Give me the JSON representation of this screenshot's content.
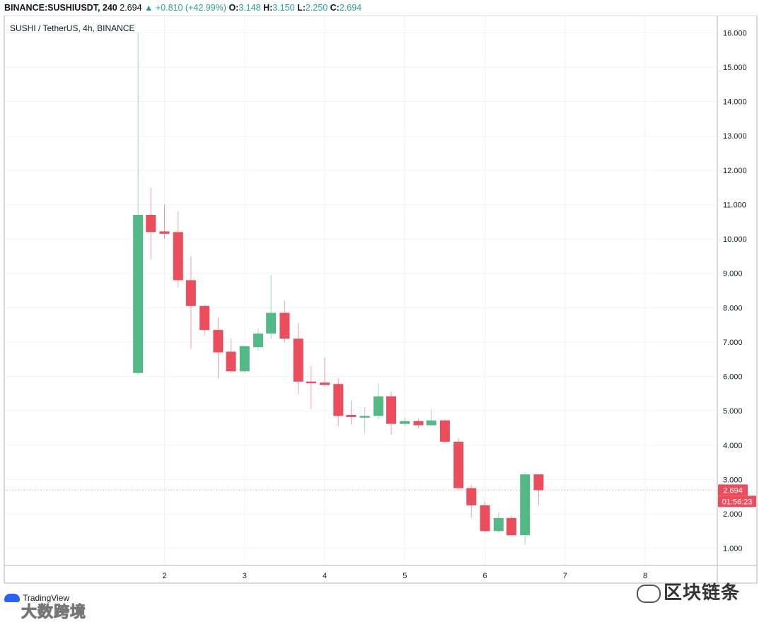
{
  "header": {
    "symbol": "BINANCE:SUSHIUSDT, 240",
    "last": "2.694",
    "change": "+0.810 (+42.99%)",
    "o_label": "O:",
    "o_value": "3.148",
    "h_label": "H:",
    "h_value": "3.150",
    "l_label": "L:",
    "l_value": "2.250",
    "c_label": "C:",
    "c_value": "2.694"
  },
  "chart_data": {
    "type": "candlestick",
    "title": "SUSHI / TetherUS, 4h, BINANCE",
    "ylim": [
      0.5,
      16.5
    ],
    "y_ticks": [
      1,
      2,
      3,
      4,
      5,
      6,
      7,
      8,
      9,
      10,
      11,
      12,
      13,
      14,
      15,
      16
    ],
    "y_tick_labels": [
      "1.000",
      "2.000",
      "3.000",
      "4.000",
      "5.000",
      "6.000",
      "7.000",
      "8.000",
      "9.000",
      "10.000",
      "11.000",
      "12.000",
      "13.000",
      "14.000",
      "15.000",
      "16.000"
    ],
    "x_ticks": [
      2,
      3,
      4,
      5,
      6,
      7,
      8
    ],
    "x_tick_labels": [
      "2",
      "3",
      "4",
      "5",
      "6",
      "7",
      "8"
    ],
    "xlim": [
      0.0,
      8.9
    ],
    "colors": {
      "up": "#53b987",
      "down": "#eb4d5c",
      "grid": "#f0f3fa",
      "axis": "#9598a1"
    },
    "candles": [
      {
        "x": 1.67,
        "o": 6.1,
        "h": 16.0,
        "l": 6.05,
        "c": 10.7
      },
      {
        "x": 1.83,
        "o": 10.7,
        "h": 11.5,
        "l": 9.4,
        "c": 10.2
      },
      {
        "x": 2.0,
        "o": 10.22,
        "h": 11.0,
        "l": 10.0,
        "c": 10.15
      },
      {
        "x": 2.17,
        "o": 10.2,
        "h": 10.8,
        "l": 8.6,
        "c": 8.8
      },
      {
        "x": 2.33,
        "o": 8.8,
        "h": 9.5,
        "l": 6.8,
        "c": 8.05
      },
      {
        "x": 2.5,
        "o": 8.05,
        "h": 8.1,
        "l": 7.2,
        "c": 7.35
      },
      {
        "x": 2.67,
        "o": 7.35,
        "h": 7.7,
        "l": 5.95,
        "c": 6.7
      },
      {
        "x": 2.83,
        "o": 6.72,
        "h": 7.1,
        "l": 6.1,
        "c": 6.15
      },
      {
        "x": 3.0,
        "o": 6.15,
        "h": 6.9,
        "l": 6.1,
        "c": 6.88
      },
      {
        "x": 3.17,
        "o": 6.85,
        "h": 7.4,
        "l": 6.75,
        "c": 7.25
      },
      {
        "x": 3.33,
        "o": 7.25,
        "h": 8.95,
        "l": 7.1,
        "c": 7.85
      },
      {
        "x": 3.5,
        "o": 7.85,
        "h": 8.2,
        "l": 7.0,
        "c": 7.1
      },
      {
        "x": 3.67,
        "o": 7.1,
        "h": 7.55,
        "l": 5.5,
        "c": 5.85
      },
      {
        "x": 3.83,
        "o": 5.85,
        "h": 6.3,
        "l": 5.05,
        "c": 5.8
      },
      {
        "x": 4.0,
        "o": 5.82,
        "h": 6.55,
        "l": 5.7,
        "c": 5.75
      },
      {
        "x": 4.17,
        "o": 5.78,
        "h": 5.95,
        "l": 4.55,
        "c": 4.85
      },
      {
        "x": 4.33,
        "o": 4.88,
        "h": 5.3,
        "l": 4.6,
        "c": 4.82
      },
      {
        "x": 4.5,
        "o": 4.8,
        "h": 5.1,
        "l": 4.35,
        "c": 4.85
      },
      {
        "x": 4.67,
        "o": 4.85,
        "h": 5.8,
        "l": 4.75,
        "c": 5.42
      },
      {
        "x": 4.83,
        "o": 5.42,
        "h": 5.55,
        "l": 4.3,
        "c": 4.62
      },
      {
        "x": 5.0,
        "o": 4.62,
        "h": 4.8,
        "l": 4.55,
        "c": 4.7
      },
      {
        "x": 5.17,
        "o": 4.7,
        "h": 4.78,
        "l": 4.5,
        "c": 4.58
      },
      {
        "x": 5.33,
        "o": 4.58,
        "h": 5.05,
        "l": 4.55,
        "c": 4.72
      },
      {
        "x": 5.5,
        "o": 4.72,
        "h": 4.75,
        "l": 4.05,
        "c": 4.1
      },
      {
        "x": 5.67,
        "o": 4.1,
        "h": 4.2,
        "l": 2.7,
        "c": 2.75
      },
      {
        "x": 5.83,
        "o": 2.75,
        "h": 2.85,
        "l": 1.9,
        "c": 2.25
      },
      {
        "x": 6.0,
        "o": 2.25,
        "h": 2.35,
        "l": 1.45,
        "c": 1.5
      },
      {
        "x": 6.17,
        "o": 1.5,
        "h": 2.05,
        "l": 1.45,
        "c": 1.88
      },
      {
        "x": 6.33,
        "o": 1.88,
        "h": 1.95,
        "l": 1.35,
        "c": 1.38
      },
      {
        "x": 6.5,
        "o": 1.38,
        "h": 3.2,
        "l": 1.1,
        "c": 3.15
      },
      {
        "x": 6.67,
        "o": 3.15,
        "h": 3.15,
        "l": 2.25,
        "c": 2.69
      }
    ],
    "price_tag": "2.694",
    "price_value": 2.694,
    "countdown_tag": "01:56:23"
  },
  "logo": {
    "text": "TradingView"
  },
  "watermark": {
    "left": "大数跨境",
    "right": "区块链条"
  }
}
